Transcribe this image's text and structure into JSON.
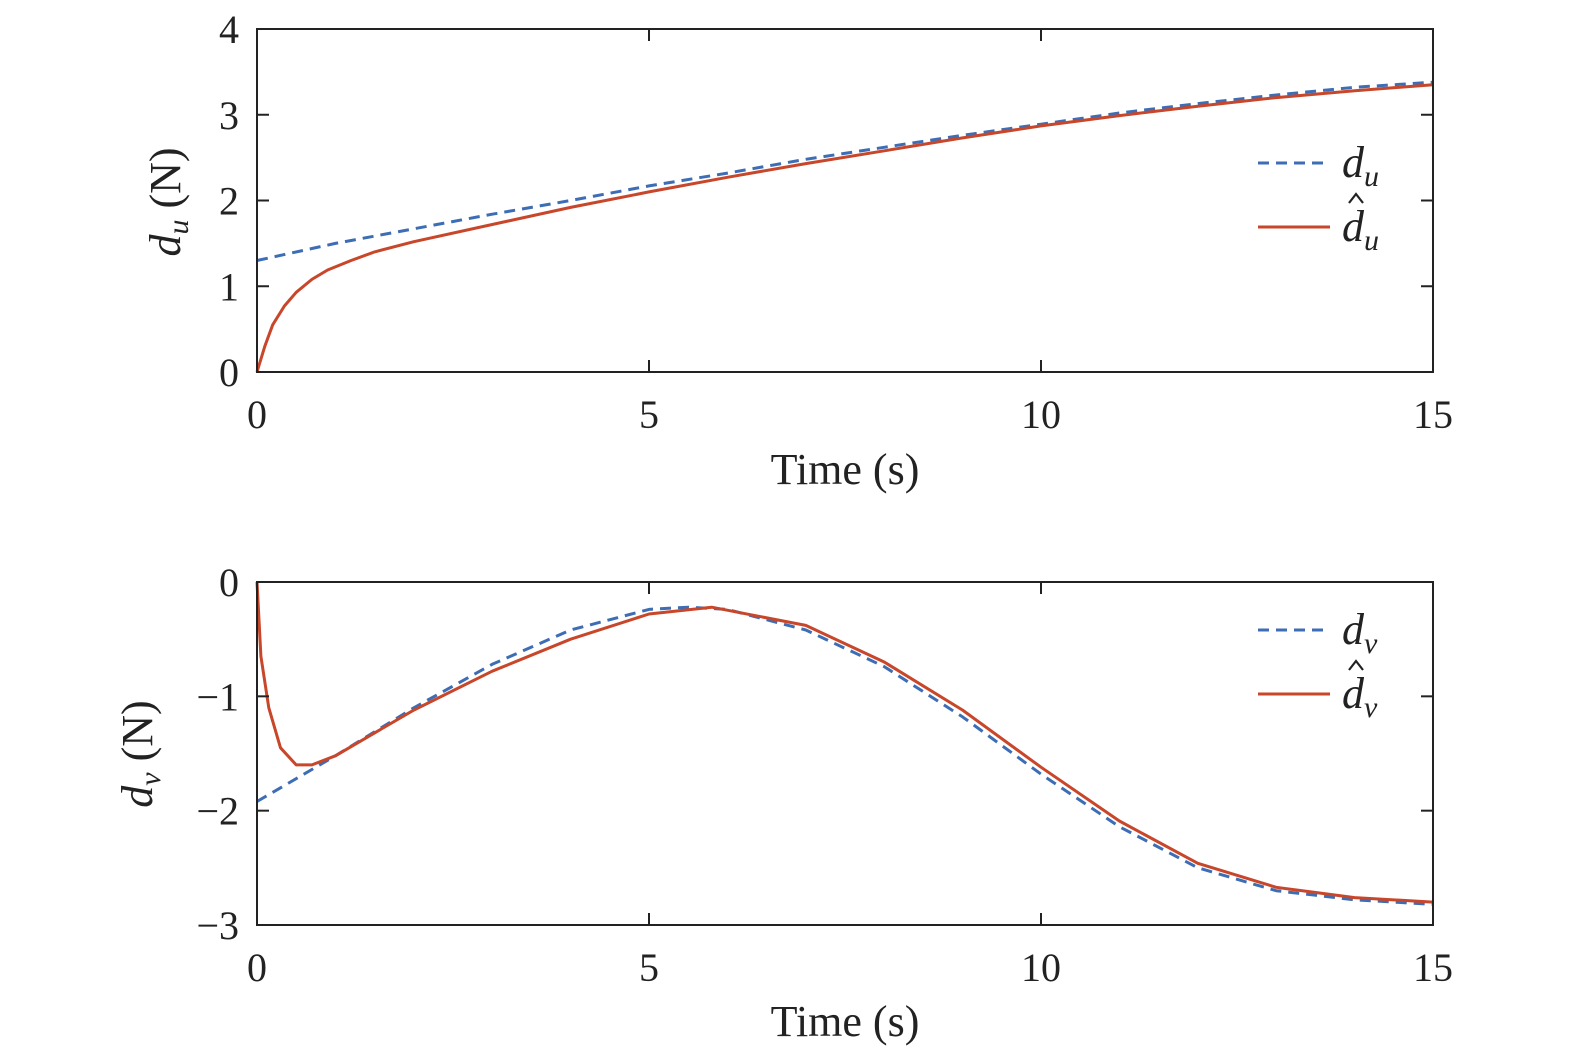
{
  "colors": {
    "reference": "#3d6db4",
    "estimate": "#c8462a",
    "axis": "#222222"
  },
  "chart_data": [
    {
      "type": "line",
      "xlabel": "Time (s)",
      "ylabel": {
        "symbol": "d",
        "sub": "u",
        "unit": " (N)"
      },
      "xlim": [
        0,
        15
      ],
      "ylim": [
        0,
        4
      ],
      "xticks": [
        0,
        5,
        10,
        15
      ],
      "yticks": [
        0,
        1,
        2,
        3,
        4
      ],
      "xtick_labels": [
        "0",
        "5",
        "10",
        "15"
      ],
      "ytick_labels": [
        "0",
        "1",
        "2",
        "3",
        "4"
      ],
      "legend": {
        "position": "right"
      },
      "grid": false,
      "series": [
        {
          "symbol": "d",
          "sub": "u",
          "hat": false,
          "style": "dashed",
          "x": [
            0,
            1,
            2,
            3,
            4,
            5,
            6,
            7,
            8,
            9,
            10,
            11,
            12,
            13,
            14,
            15
          ],
          "y": [
            1.3,
            1.5,
            1.67,
            1.84,
            2.0,
            2.17,
            2.32,
            2.48,
            2.62,
            2.76,
            2.89,
            3.02,
            3.13,
            3.23,
            3.32,
            3.38
          ]
        },
        {
          "symbol": "d",
          "sub": "u",
          "hat": true,
          "style": "solid",
          "x": [
            0,
            0.1,
            0.2,
            0.35,
            0.5,
            0.7,
            0.9,
            1.2,
            1.5,
            2,
            3,
            4,
            5,
            6,
            7,
            8,
            9,
            10,
            11,
            12,
            13,
            14,
            15
          ],
          "y": [
            0,
            0.3,
            0.55,
            0.77,
            0.93,
            1.08,
            1.19,
            1.3,
            1.4,
            1.52,
            1.72,
            1.92,
            2.1,
            2.27,
            2.43,
            2.58,
            2.73,
            2.87,
            2.99,
            3.1,
            3.2,
            3.28,
            3.35
          ]
        }
      ]
    },
    {
      "type": "line",
      "xlabel": "Time (s)",
      "ylabel": {
        "symbol": "d",
        "sub": "v",
        "unit": " (N)"
      },
      "xlim": [
        0,
        15
      ],
      "ylim": [
        -3,
        0
      ],
      "xticks": [
        0,
        5,
        10,
        15
      ],
      "yticks": [
        0,
        -1,
        -2,
        -3
      ],
      "xtick_labels": [
        "0",
        "5",
        "10",
        "15"
      ],
      "ytick_labels": [
        "0",
        "−1",
        "−2",
        "−3"
      ],
      "legend": {
        "position": "top-right"
      },
      "grid": false,
      "series": [
        {
          "symbol": "d",
          "sub": "v",
          "hat": false,
          "style": "dashed",
          "x": [
            0,
            1,
            2,
            3,
            4,
            5,
            5.5,
            6,
            7,
            8,
            9,
            10,
            11,
            12,
            13,
            14,
            15
          ],
          "y": [
            -1.92,
            -1.52,
            -1.1,
            -0.72,
            -0.42,
            -0.24,
            -0.22,
            -0.24,
            -0.42,
            -0.74,
            -1.18,
            -1.68,
            -2.14,
            -2.5,
            -2.7,
            -2.78,
            -2.82
          ]
        },
        {
          "symbol": "d",
          "sub": "v",
          "hat": true,
          "style": "solid",
          "x": [
            0,
            0.05,
            0.15,
            0.3,
            0.5,
            0.7,
            1,
            1.5,
            2,
            3,
            4,
            5,
            5.8,
            7,
            8,
            9,
            10,
            11,
            12,
            13,
            14,
            15
          ],
          "y": [
            0,
            -0.65,
            -1.1,
            -1.45,
            -1.6,
            -1.6,
            -1.52,
            -1.32,
            -1.12,
            -0.78,
            -0.5,
            -0.28,
            -0.22,
            -0.38,
            -0.7,
            -1.12,
            -1.62,
            -2.09,
            -2.46,
            -2.67,
            -2.76,
            -2.8
          ]
        }
      ]
    }
  ]
}
